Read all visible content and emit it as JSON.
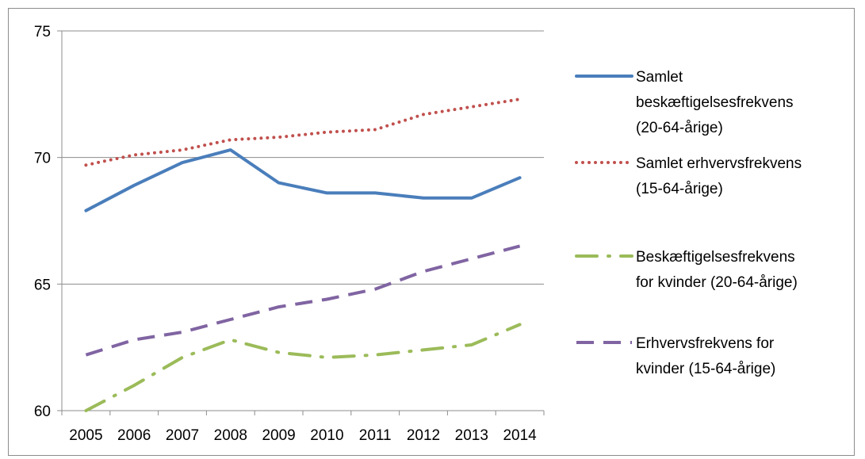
{
  "chart_data": {
    "type": "line",
    "title": "",
    "xlabel": "",
    "ylabel": "",
    "categories": [
      "2005",
      "2006",
      "2007",
      "2008",
      "2009",
      "2010",
      "2011",
      "2012",
      "2013",
      "2014"
    ],
    "ylim": [
      60,
      75
    ],
    "yticks": [
      60,
      65,
      70,
      75
    ],
    "grid": true,
    "legend_position": "right",
    "series": [
      {
        "name": "Samlet beskæftigelsesfrekvens (20-64-årige)",
        "legend_lines": [
          "Samlet",
          "beskæftigelsesfrekvens",
          "(20-64-årige)"
        ],
        "values": [
          67.9,
          68.9,
          69.8,
          70.3,
          69.0,
          68.6,
          68.6,
          68.4,
          68.4,
          69.2
        ],
        "color": "#4a7ebb",
        "style": "solid"
      },
      {
        "name": "Samlet erhvervsfrekvens (15-64-årige)",
        "legend_lines": [
          "Samlet erhvervsfrekvens",
          "(15-64-årige)"
        ],
        "values": [
          69.7,
          70.1,
          70.3,
          70.7,
          70.8,
          71.0,
          71.1,
          71.7,
          72.0,
          72.3
        ],
        "color": "#c0504d",
        "style": "dotted"
      },
      {
        "name": "Beskæftigelsesfrekvens for kvinder (20-64-årige)",
        "legend_lines": [
          "Beskæftigelsesfrekvens",
          "for kvinder (20-64-årige)"
        ],
        "values": [
          60.0,
          61.0,
          62.1,
          62.8,
          62.3,
          62.1,
          62.2,
          62.4,
          62.6,
          63.4
        ],
        "color": "#9bbb59",
        "style": "dashdot"
      },
      {
        "name": "Erhvervsfrekvens for kvinder (15-64-årige)",
        "legend_lines": [
          "Erhvervsfrekvens for",
          "kvinder (15-64-årige)"
        ],
        "values": [
          62.2,
          62.8,
          63.1,
          63.6,
          64.1,
          64.4,
          64.8,
          65.5,
          66.0,
          66.5
        ],
        "color": "#8064a2",
        "style": "dashed"
      }
    ]
  }
}
